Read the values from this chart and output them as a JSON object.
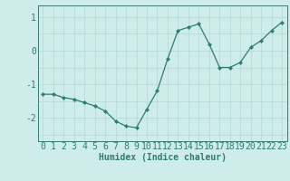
{
  "x": [
    0,
    1,
    2,
    3,
    4,
    5,
    6,
    7,
    8,
    9,
    10,
    11,
    12,
    13,
    14,
    15,
    16,
    17,
    18,
    19,
    20,
    21,
    22,
    23
  ],
  "y": [
    -1.3,
    -1.3,
    -1.4,
    -1.45,
    -1.55,
    -1.65,
    -1.8,
    -2.1,
    -2.25,
    -2.3,
    -1.75,
    -1.2,
    -0.25,
    0.6,
    0.7,
    0.8,
    0.2,
    -0.5,
    -0.5,
    -0.35,
    0.1,
    0.3,
    0.6,
    0.85
  ],
  "xlabel": "Humidex (Indice chaleur)",
  "bg_color": "#ceecea",
  "grid_color": "#b8dbd9",
  "line_color": "#2e7d72",
  "marker_color": "#2e7d72",
  "axis_color": "#3a7a72",
  "tick_label_color": "#2e7d72",
  "xlabel_color": "#2e7d72",
  "xlim": [
    -0.5,
    23.5
  ],
  "ylim": [
    -2.7,
    1.35
  ],
  "yticks": [
    -2,
    -1,
    0,
    1
  ],
  "xticks": [
    0,
    1,
    2,
    3,
    4,
    5,
    6,
    7,
    8,
    9,
    10,
    11,
    12,
    13,
    14,
    15,
    16,
    17,
    18,
    19,
    20,
    21,
    22,
    23
  ],
  "tick_fontsize": 7,
  "xlabel_fontsize": 7
}
